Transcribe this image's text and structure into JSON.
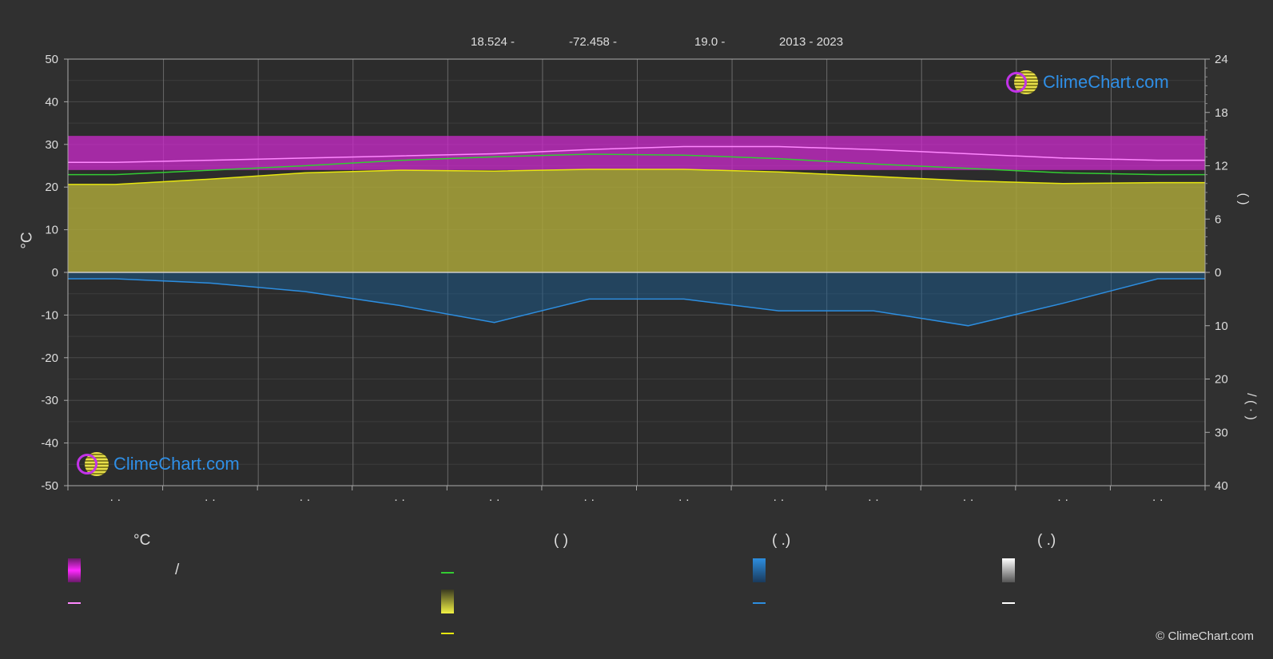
{
  "header": {
    "lat": "18.524 -",
    "lon": "-72.458 -",
    "elev": "19.0 -",
    "years": "2013 - 2023"
  },
  "chart_data": {
    "type": "area",
    "left_axis": {
      "label": "°C",
      "ylim": [
        -50,
        50
      ],
      "ticks": [
        "50",
        "40",
        "30",
        "20",
        "10",
        "0",
        "-10",
        "-20",
        "-30",
        "-40",
        "-50"
      ]
    },
    "right_axis_top": {
      "label": "( )",
      "ylim": [
        0,
        24
      ],
      "ticks": [
        "24",
        "18",
        "12",
        "6",
        "0"
      ]
    },
    "right_axis_bottom": {
      "label": "/ ( · )",
      "ylim": [
        0,
        40
      ],
      "ticks": [
        "0",
        "10",
        "20",
        "30",
        "40"
      ]
    },
    "month_ticks": [
      "· ·",
      "· ·",
      "· ·",
      "· ·",
      "· ·",
      "· ·",
      "· ·",
      "· ·",
      "· ·",
      "· ·",
      "· ·",
      "· ·"
    ],
    "series": [
      {
        "key": "max_temp",
        "unit": "°C",
        "color": "#ff88ff",
        "values": [
          25.8,
          26.3,
          26.8,
          27.3,
          27.8,
          28.8,
          29.5,
          29.5,
          28.8,
          27.8,
          26.8,
          26.3
        ]
      },
      {
        "key": "daylight_hours",
        "unit": "h",
        "color": "#33cc33",
        "values": [
          11.0,
          11.5,
          12.0,
          12.6,
          13.0,
          13.3,
          13.2,
          12.8,
          12.2,
          11.7,
          11.2,
          11.0
        ]
      },
      {
        "key": "sunshine_hours",
        "unit": "h",
        "color": "#e6e60f",
        "values": [
          9.9,
          10.5,
          11.2,
          11.5,
          11.4,
          11.6,
          11.6,
          11.3,
          10.8,
          10.3,
          10.0,
          10.1
        ]
      },
      {
        "key": "precipitation",
        "unit": "mm",
        "color": "#2d8ee0",
        "values": [
          1.2,
          2.0,
          3.6,
          6.2,
          9.4,
          5.0,
          5.0,
          7.2,
          7.2,
          10.0,
          5.8,
          1.2
        ]
      }
    ],
    "temp_band": {
      "min": 24,
      "max": 32,
      "color": "#cc29cc"
    },
    "sunshine_fill_color": "#a9a53a",
    "rain_fill_color": "#1e5a88"
  },
  "legend": {
    "col1_title": "°C",
    "col1_swatch_sep": "/",
    "col2_title": "(          )",
    "col3_title": "(    .)",
    "col4_title": "(    .)"
  },
  "logos": {
    "brand": "ClimeChart.com"
  },
  "copyright": "© ClimeChart.com"
}
